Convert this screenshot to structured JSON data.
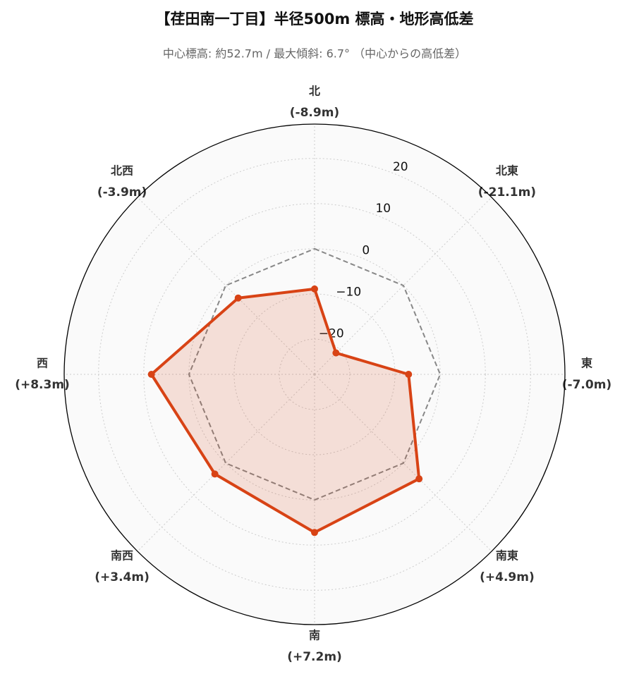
{
  "chart_data": {
    "type": "radar",
    "title": "【荏田南一丁目】半径500m 標高・地形高低差",
    "subtitle": "中心標高: 約52.7m / 最大傾斜: 6.7° （中心からの高低差）",
    "categories": [
      "北",
      "北東",
      "東",
      "南東",
      "南",
      "南西",
      "西",
      "北西"
    ],
    "values": [
      -8.9,
      -21.1,
      -7.0,
      4.9,
      7.2,
      3.4,
      8.3,
      -3.9
    ],
    "value_labels": [
      "(-8.9m)",
      "(-21.1m)",
      "(-7.0m)",
      "(+4.9m)",
      "(+7.2m)",
      "(+3.4m)",
      "(+8.3m)",
      "(-3.9m)"
    ],
    "color": "#d84315",
    "reference_value": 0,
    "ylim": [
      -27.8,
      27.6
    ],
    "yticks": [
      {
        "value": -20,
        "label": "−20"
      },
      {
        "value": -10,
        "label": "−10"
      },
      0,
      10,
      20
    ],
    "grid": true
  }
}
